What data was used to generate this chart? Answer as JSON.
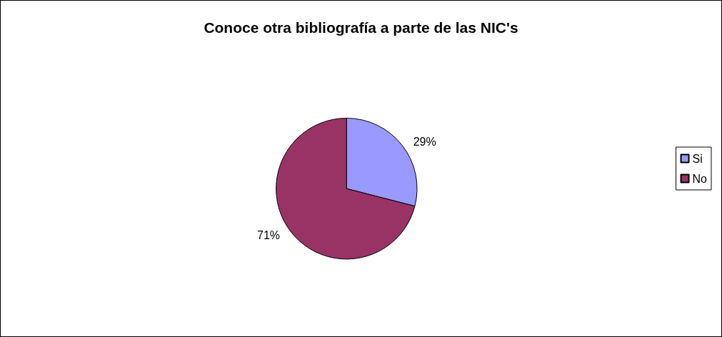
{
  "chart_data": {
    "type": "pie",
    "title": "Conoce otra bibliografía a parte de las NIC's",
    "categories": [
      "Si",
      "No"
    ],
    "values": [
      29,
      71
    ],
    "colors": [
      "#9999ff",
      "#993366"
    ],
    "value_labels": [
      "29%",
      "71%"
    ],
    "legend": "right"
  }
}
